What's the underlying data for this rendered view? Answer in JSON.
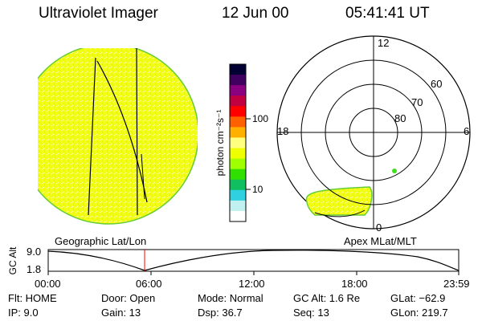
{
  "header": {
    "instrument": "Ultraviolet Imager",
    "date": "12 Jun 00",
    "time": "05:41:41 UT"
  },
  "colorbar": {
    "unit_label": "photon cm⁻²s⁻¹",
    "ticks": [
      "100",
      "10"
    ],
    "colors": [
      "#000033",
      "#400060",
      "#8a0080",
      "#c00040",
      "#ff0000",
      "#ff6000",
      "#ffb000",
      "#ffff80",
      "#f0ff00",
      "#a0ff00",
      "#30e000",
      "#10c060",
      "#30d0e0",
      "#c0f0f0",
      "#ffffff"
    ]
  },
  "polar_plot": {
    "mlt_labels": [
      "12",
      "18",
      "6",
      "0"
    ],
    "mlat_labels": [
      "60",
      "70",
      "80"
    ]
  },
  "timeline": {
    "geo_label": "Geographic Lat/Lon",
    "apex_label": "Apex MLat/MLT",
    "y_axis_title": "GC Alt",
    "y_ticks": [
      "9.0",
      "1.8"
    ],
    "x_ticks": [
      "00:00",
      "06:00",
      "12:00",
      "18:00",
      "23:59"
    ],
    "current_marker": "05:41"
  },
  "footer": {
    "rows": [
      [
        "Flt: HOME",
        "Door: Open",
        "Mode: Normal",
        "GC Alt: 1.6 Re",
        "GLat: −62.9"
      ],
      [
        "IP:  9.0",
        "Gain: 13",
        "Dsp:   36.7",
        "Seq: 13",
        "GLon: 219.7"
      ]
    ]
  }
}
